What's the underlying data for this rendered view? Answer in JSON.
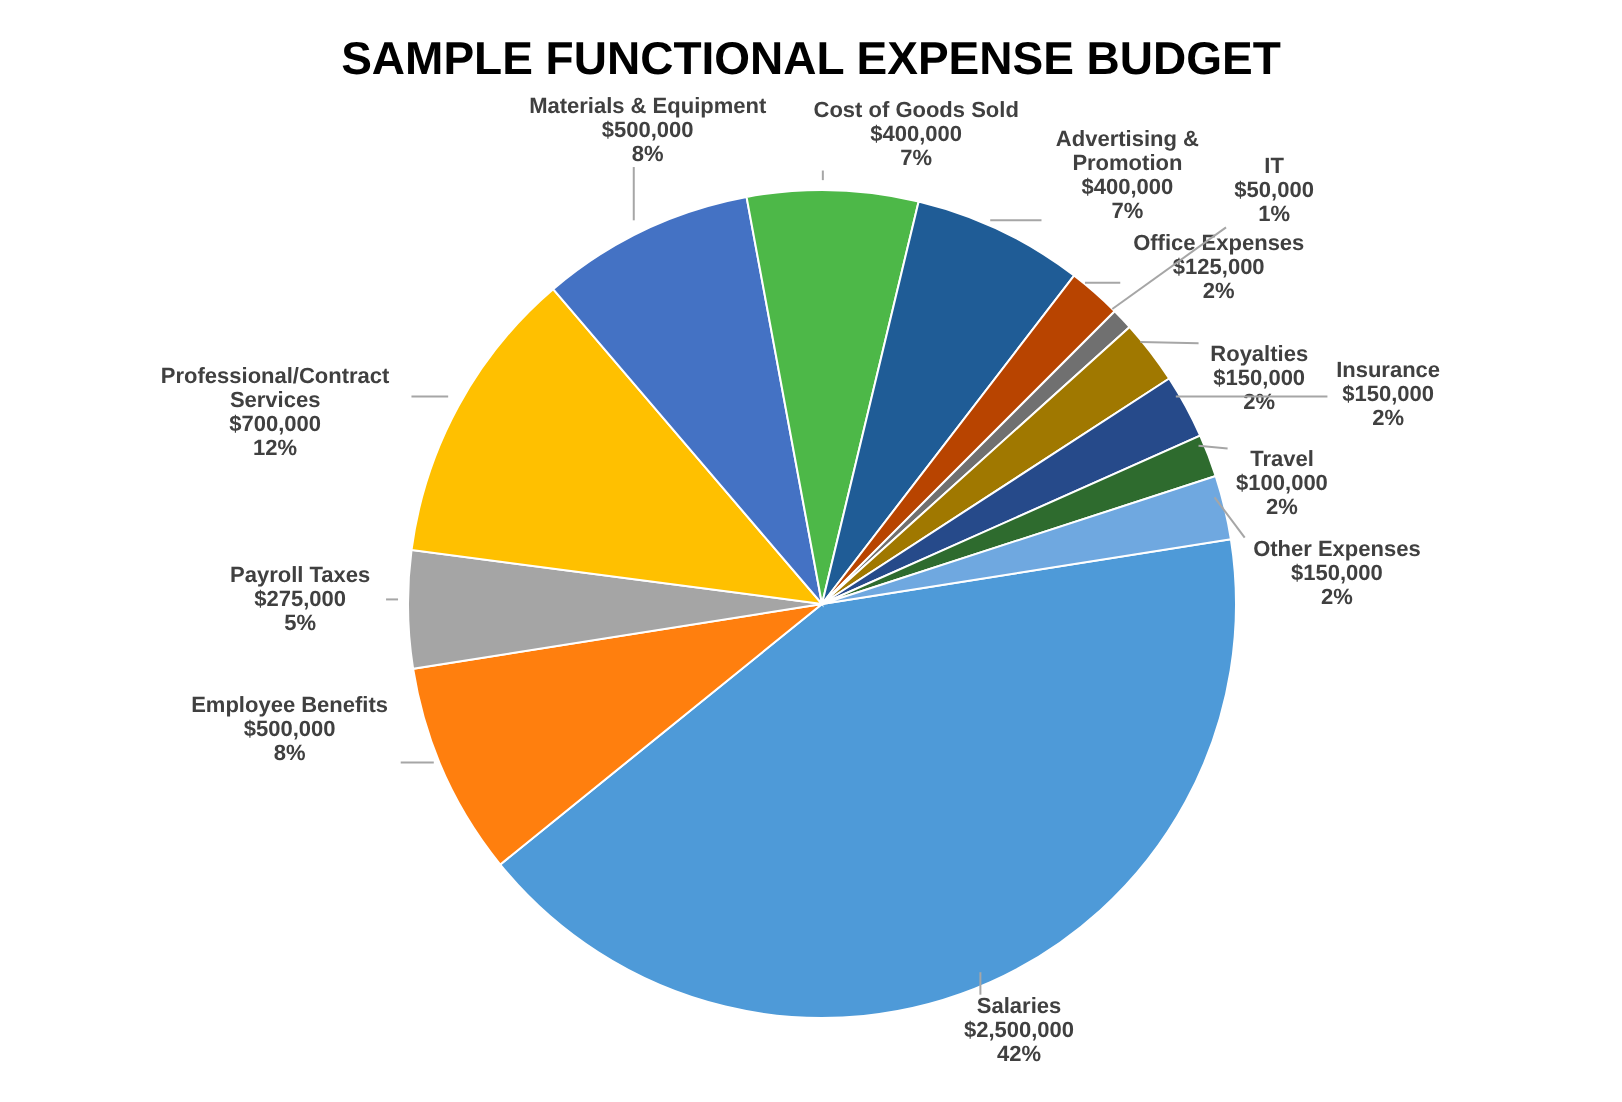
{
  "chart_data": {
    "type": "pie",
    "title": "SAMPLE FUNCTIONAL EXPENSE BUDGET",
    "categories": [
      "Salaries",
      "Employee Benefits",
      "Payroll Taxes",
      "Professional/Contract Services",
      "Materials & Equipment",
      "Cost of Goods Sold",
      "Advertising & Promotion",
      "Office Expenses",
      "IT",
      "Royalties",
      "Insurance",
      "Travel",
      "Other Expenses"
    ],
    "values": [
      2500000,
      500000,
      275000,
      700000,
      500000,
      400000,
      400000,
      125000,
      50000,
      150000,
      150000,
      100000,
      150000
    ],
    "value_labels": [
      "$2,500,000\n42%",
      "$500,000\n8%",
      "$275,000\n5%",
      "$700,000\n12%",
      "$500,000\n8%",
      "$400,000\n7%",
      "$400,000\n7%",
      "$125,000\n2%",
      "$50,000\n1%",
      "$150,000\n2%",
      "$150,000\n2%",
      "$100,000\n2%",
      "$150,000\n2%"
    ],
    "colors": [
      "#4e9ad8",
      "#ff7f0e",
      "#a5a5a5",
      "#ffc000",
      "#4472c4",
      "#4db848",
      "#1f5c96",
      "#b84400",
      "#707070",
      "#a07800",
      "#264a8a",
      "#2e6b2e",
      "#6fa8e0"
    ]
  }
}
